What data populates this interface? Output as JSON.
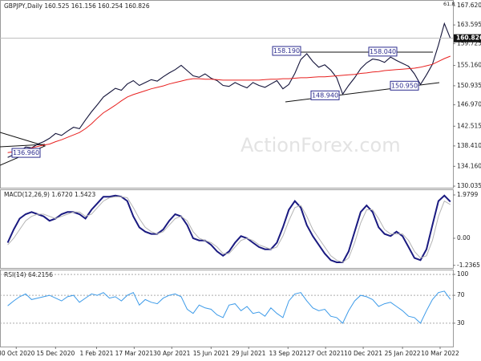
{
  "chart_data": [
    {
      "type": "line",
      "title": "GBPJPY,Daily  160.525 161.156 160.254 160.826",
      "corner_label": "61.8",
      "watermark": "ActionForex.com",
      "ylim": [
        129.54,
        168.79
      ],
      "yticks": [
        {
          "value": 167.62,
          "label": "167.620"
        },
        {
          "value": 163.595,
          "label": "163.595"
        },
        {
          "value": 159.725,
          "label": "159.725"
        },
        {
          "value": 155.16,
          "label": "155.160"
        },
        {
          "value": 150.935,
          "label": "150.935"
        },
        {
          "value": 146.97,
          "label": "146.970"
        },
        {
          "value": 142.515,
          "label": "142.515"
        },
        {
          "value": 138.41,
          "label": "138.410"
        },
        {
          "value": 134.16,
          "label": "134.160"
        },
        {
          "value": 130.035,
          "label": "130.035"
        }
      ],
      "last_value": 160.826,
      "annotations": [
        {
          "value": 158.19,
          "label": "158.190"
        },
        {
          "value": 158.04,
          "label": "158.040"
        },
        {
          "value": 148.94,
          "label": "148.940"
        },
        {
          "value": 150.95,
          "label": "150.950"
        },
        {
          "value": 136.96,
          "label": "136.960"
        }
      ],
      "series": [
        {
          "color": "#14143a",
          "values": [
            136.0,
            136.6,
            137.2,
            138.2,
            138.0,
            138.8,
            139.3,
            140.0,
            141.0,
            140.6,
            141.5,
            142.3,
            142.0,
            143.8,
            145.5,
            147.0,
            148.6,
            149.5,
            150.4,
            150.0,
            151.3,
            152.0,
            151.0,
            151.6,
            152.2,
            151.9,
            152.8,
            153.6,
            154.3,
            155.2,
            154.1,
            153.0,
            152.7,
            153.4,
            152.5,
            152.0,
            151.0,
            150.8,
            151.6,
            151.0,
            150.5,
            151.6,
            151.0,
            150.6,
            151.3,
            152.0,
            150.3,
            151.2,
            153.5,
            156.4,
            157.6,
            156.0,
            154.8,
            155.3,
            154.2,
            152.6,
            149.2,
            151.0,
            152.6,
            154.5,
            155.7,
            156.5,
            156.3,
            155.8,
            156.9,
            156.2,
            155.6,
            155.0,
            153.4,
            151.2,
            153.2,
            155.4,
            159.4,
            163.9,
            160.8
          ]
        },
        {
          "color": "#e8201f",
          "values": [
            137.0,
            137.2,
            137.5,
            137.7,
            138.0,
            138.3,
            138.6,
            138.8,
            139.3,
            139.7,
            140.2,
            140.7,
            141.2,
            142.0,
            143.0,
            144.2,
            145.3,
            146.1,
            146.9,
            147.8,
            148.6,
            149.1,
            149.5,
            149.9,
            150.3,
            150.6,
            150.9,
            151.3,
            151.6,
            151.9,
            152.2,
            152.4,
            152.4,
            152.3,
            152.3,
            152.2,
            152.1,
            152.1,
            152.1,
            152.1,
            152.1,
            152.1,
            152.1,
            152.2,
            152.3,
            152.3,
            152.4,
            152.4,
            152.5,
            152.6,
            152.6,
            152.7,
            152.8,
            152.8,
            152.9,
            153.0,
            153.1,
            153.2,
            153.3,
            153.5,
            153.6,
            153.8,
            153.9,
            154.1,
            154.2,
            154.3,
            154.4,
            154.5,
            154.6,
            154.8,
            155.1,
            155.4,
            156.0,
            156.6,
            157.1
          ]
        }
      ]
    },
    {
      "type": "line",
      "title": "MACD(12,26,9) 1.6720 1.5423",
      "ylim": [
        -1.392,
        2.236
      ],
      "yticks": [
        1.9799,
        {
          "value": 0,
          "label": "0.00"
        },
        -1.2365
      ],
      "series": [
        {
          "color": "#1a1a80",
          "values": [
            -0.2,
            0.4,
            0.9,
            1.1,
            1.2,
            1.1,
            1.0,
            0.8,
            0.9,
            1.1,
            1.2,
            1.2,
            1.1,
            0.9,
            1.3,
            1.6,
            1.9,
            1.9,
            1.95,
            1.9,
            1.7,
            1.0,
            0.5,
            0.3,
            0.2,
            0.2,
            0.4,
            0.8,
            1.1,
            1.0,
            0.6,
            0.0,
            -0.1,
            -0.1,
            -0.3,
            -0.6,
            -0.8,
            -0.6,
            -0.2,
            0.1,
            0.0,
            -0.2,
            -0.4,
            -0.5,
            -0.5,
            -0.2,
            0.5,
            1.3,
            1.7,
            1.4,
            0.6,
            0.1,
            -0.3,
            -0.7,
            -1.0,
            -1.1,
            -1.1,
            -0.6,
            0.3,
            1.2,
            1.5,
            1.2,
            0.5,
            0.2,
            0.1,
            0.3,
            0.1,
            -0.4,
            -0.9,
            -1.0,
            -0.5,
            0.6,
            1.7,
            1.95,
            1.67
          ]
        },
        {
          "color": "#b4b4b4",
          "values": [
            -0.3,
            0.0,
            0.4,
            0.8,
            1.0,
            1.1,
            1.1,
            1.0,
            0.9,
            1.0,
            1.1,
            1.2,
            1.2,
            1.0,
            1.1,
            1.4,
            1.7,
            1.85,
            1.9,
            1.9,
            1.85,
            1.4,
            0.9,
            0.5,
            0.3,
            0.2,
            0.3,
            0.6,
            0.9,
            1.0,
            0.8,
            0.3,
            0.0,
            -0.1,
            -0.2,
            -0.4,
            -0.7,
            -0.7,
            -0.4,
            -0.1,
            0.0,
            -0.1,
            -0.3,
            -0.4,
            -0.5,
            -0.4,
            0.1,
            0.8,
            1.4,
            1.5,
            1.0,
            0.4,
            0.0,
            -0.4,
            -0.8,
            -1.0,
            -1.1,
            -0.9,
            -0.2,
            0.7,
            1.3,
            1.3,
            0.9,
            0.4,
            0.2,
            0.2,
            0.2,
            -0.1,
            -0.6,
            -0.9,
            -0.8,
            -0.1,
            1.0,
            1.7,
            1.54
          ]
        }
      ]
    },
    {
      "type": "line",
      "title": "RSI(14) 64.2156",
      "ylim": [
        -3.5,
        107
      ],
      "yticks": [
        100,
        70,
        30
      ],
      "grid": true,
      "x": [
        0,
        7,
        14,
        21,
        28,
        35,
        42,
        49,
        56,
        63,
        70,
        77,
        84,
        91,
        98,
        105,
        112,
        119,
        126,
        133,
        140,
        147,
        154,
        161,
        168,
        175,
        182,
        189,
        196,
        203,
        210,
        217,
        224,
        231,
        238,
        245,
        252,
        259,
        266,
        273,
        280,
        287,
        294,
        301,
        308,
        315,
        322,
        329,
        336,
        343,
        350,
        357,
        364,
        371,
        378,
        385,
        392,
        399,
        406,
        413,
        420,
        427,
        434,
        441,
        448,
        455,
        462,
        469,
        476,
        483,
        490,
        497,
        504,
        511,
        518
      ],
      "xlim": [
        -9,
        521
      ],
      "xticks": [
        {
          "value": 10,
          "label": "30 Oct 2020"
        },
        {
          "value": 56,
          "label": "15 Dec 2020"
        },
        {
          "value": 104,
          "label": "1 Feb 2021"
        },
        {
          "value": 148,
          "label": "17 Mar 2021"
        },
        {
          "value": 192,
          "label": "30 Apr 2021"
        },
        {
          "value": 238,
          "label": "15 Jun 2021"
        },
        {
          "value": 282,
          "label": "29 Jul 2021"
        },
        {
          "value": 328,
          "label": "13 Sep 2021"
        },
        {
          "value": 372,
          "label": "27 Oct 2021"
        },
        {
          "value": 416,
          "label": "10 Dec 2021"
        },
        {
          "value": 462,
          "label": "25 Jan 2022"
        },
        {
          "value": 506,
          "label": "10 Mar 2022"
        }
      ],
      "series": [
        {
          "color": "#3d9be9",
          "values": [
            55,
            62,
            68,
            72,
            64,
            66,
            68,
            70,
            66,
            62,
            68,
            70,
            60,
            66,
            72,
            70,
            74,
            66,
            68,
            62,
            70,
            74,
            56,
            64,
            60,
            58,
            66,
            70,
            72,
            68,
            50,
            44,
            56,
            52,
            50,
            42,
            38,
            56,
            58,
            48,
            54,
            44,
            46,
            40,
            52,
            44,
            38,
            62,
            72,
            74,
            62,
            52,
            48,
            50,
            40,
            38,
            30,
            48,
            62,
            70,
            68,
            64,
            54,
            58,
            60,
            54,
            48,
            40,
            38,
            30,
            48,
            64,
            74,
            76,
            64.2
          ]
        }
      ]
    }
  ]
}
